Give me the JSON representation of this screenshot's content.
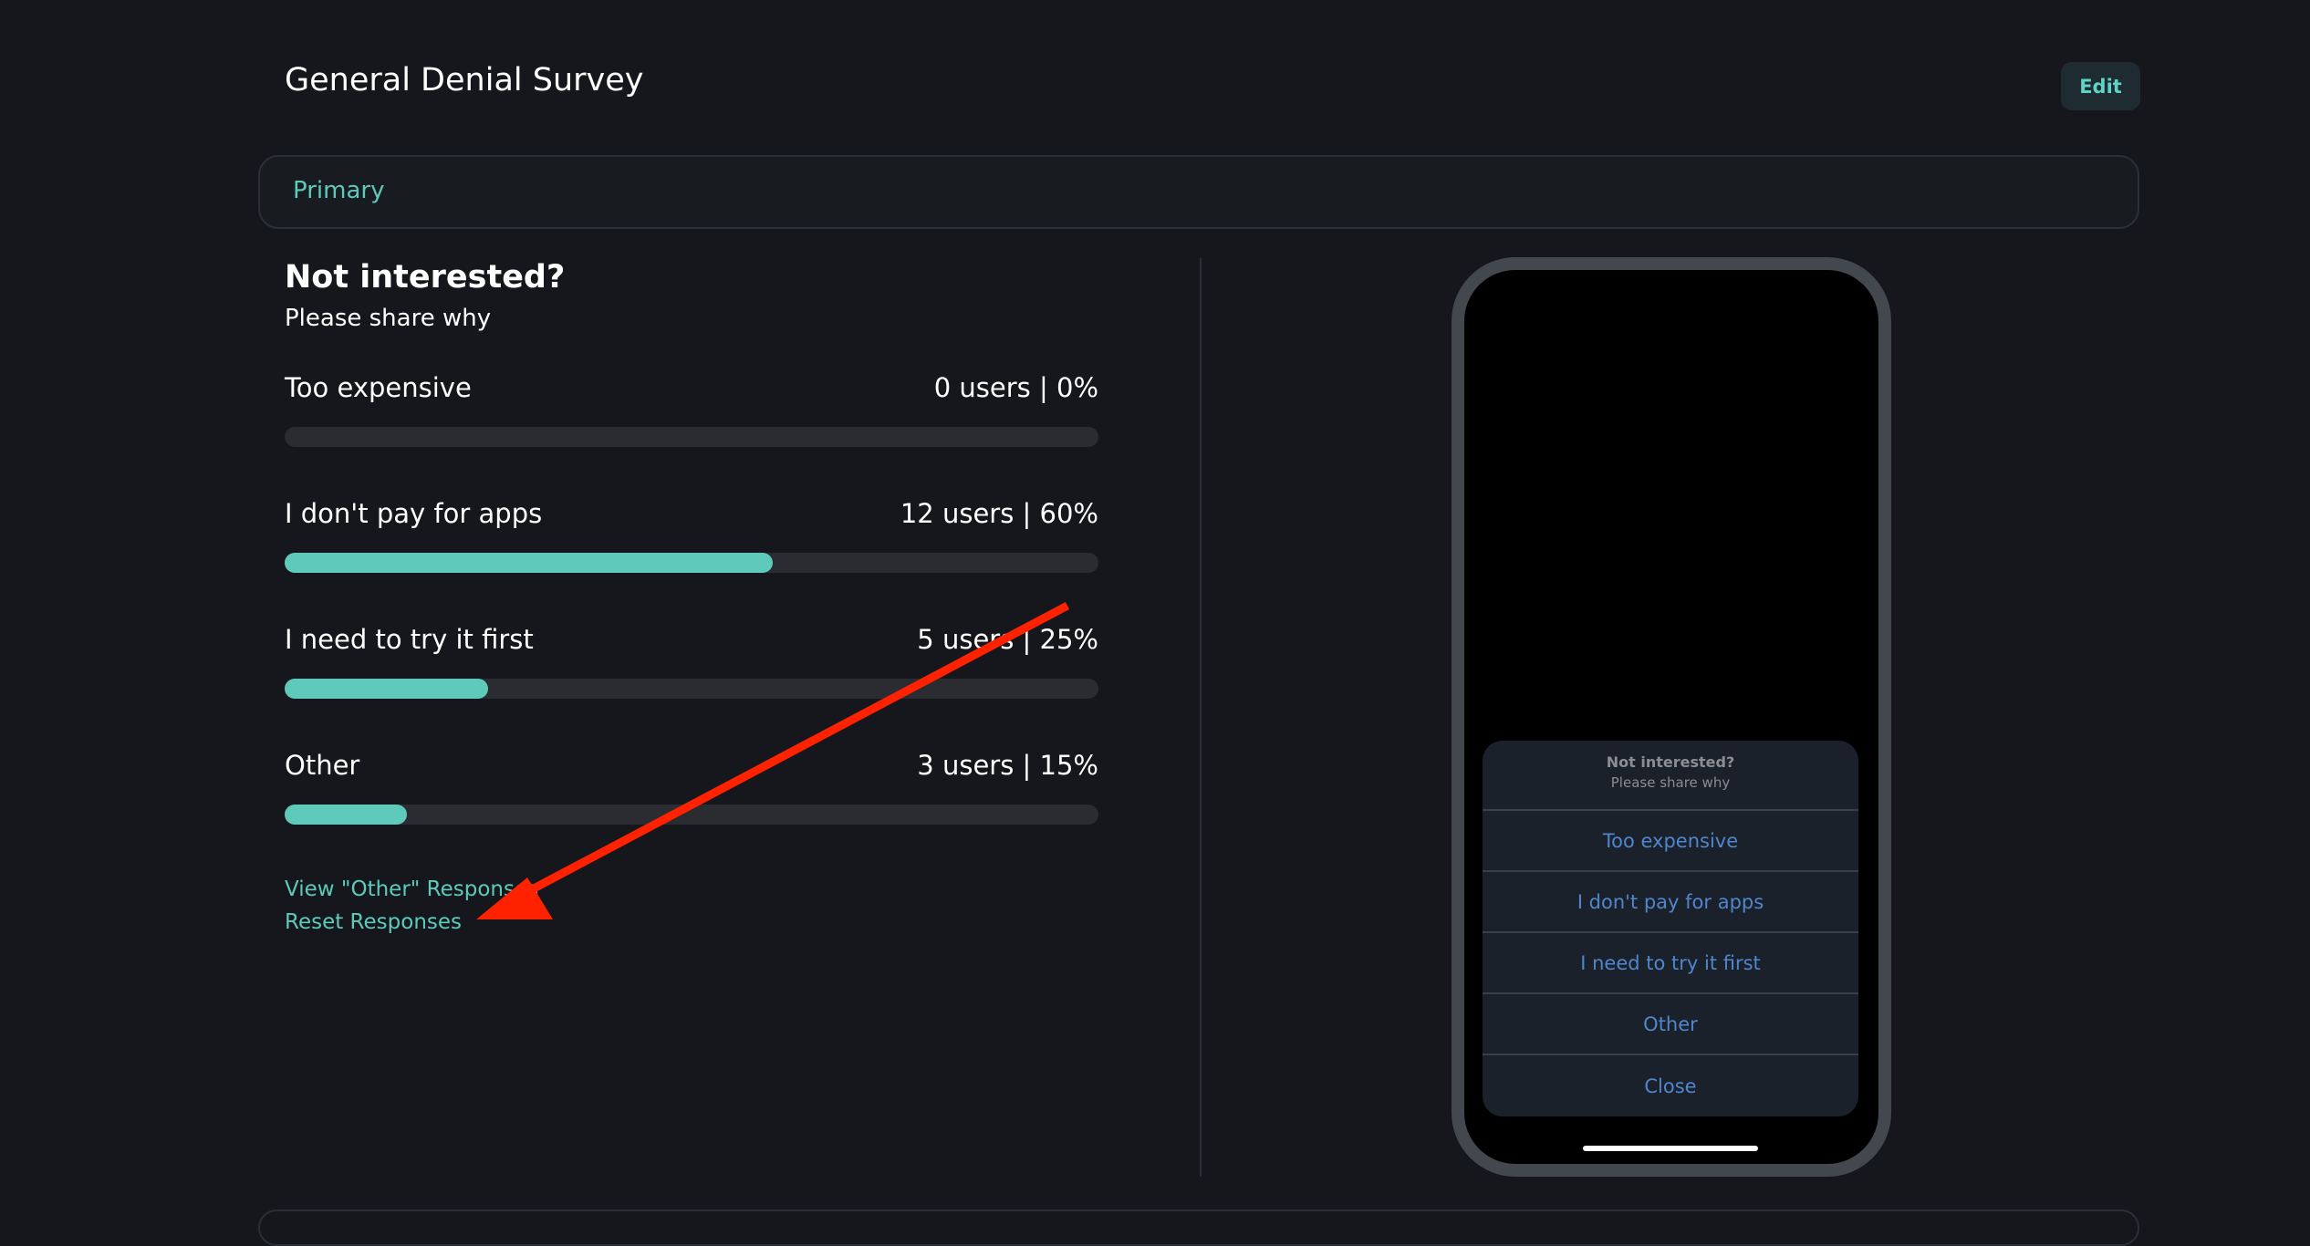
{
  "header": {
    "title": "General Denial Survey",
    "edit_label": "Edit"
  },
  "tab_card": {
    "label": "Primary"
  },
  "question": {
    "title": "Not interested?",
    "subtitle": "Please share why"
  },
  "results": [
    {
      "label": "Too expensive",
      "value": "0 users | 0%",
      "percent": 0
    },
    {
      "label": "I don't pay for apps",
      "value": "12 users | 60%",
      "percent": 60
    },
    {
      "label": "I need to try it first",
      "value": "5 users | 25%",
      "percent": 25
    },
    {
      "label": "Other",
      "value": "3 users | 15%",
      "percent": 15
    }
  ],
  "links": {
    "view_other": "View \"Other\" Responses",
    "reset": "Reset Responses"
  },
  "preview": {
    "title": "Not interested?",
    "subtitle": "Please share why",
    "options": [
      "Too expensive",
      "I don't pay for apps",
      "I need to try it first",
      "Other",
      "Close"
    ]
  },
  "colors": {
    "accent": "#5fc9bb",
    "bar_track": "#2a2c31",
    "preview_option": "#4f86cc",
    "annotation_arrow": "#ff2200"
  }
}
